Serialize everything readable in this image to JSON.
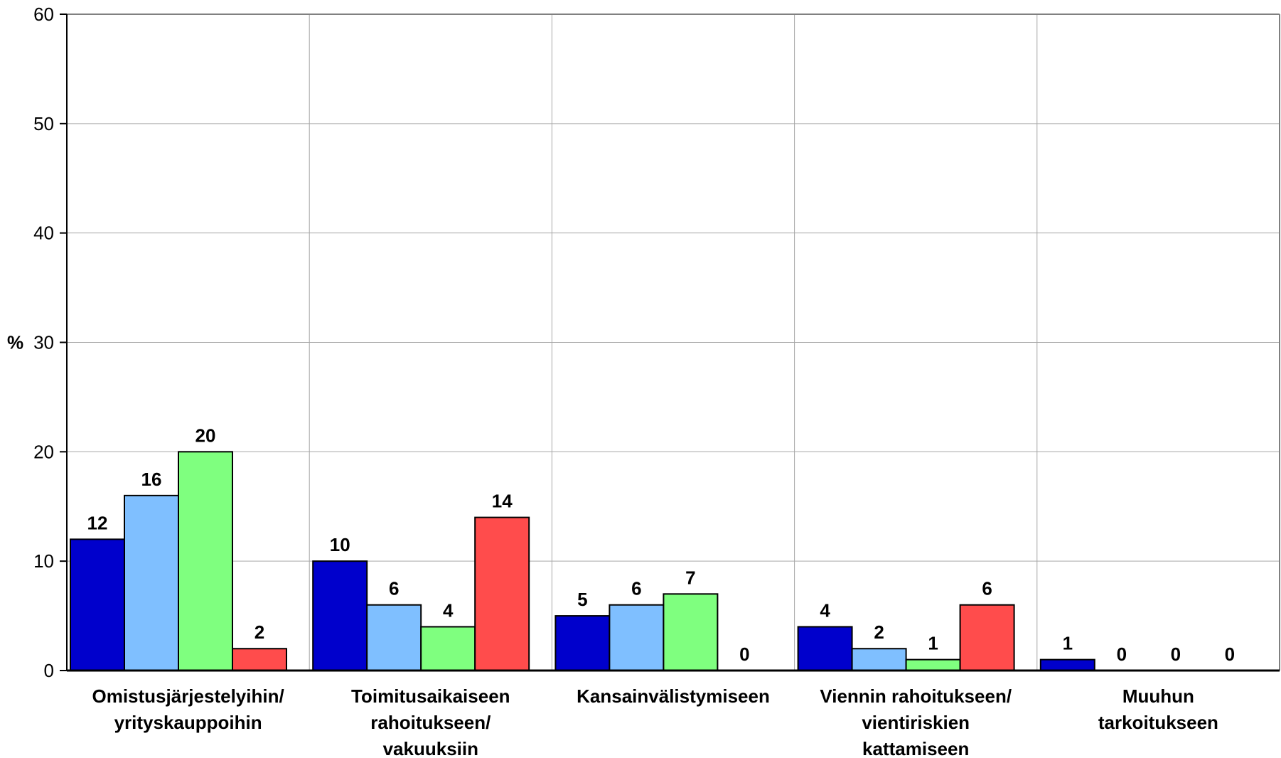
{
  "chart_data": {
    "type": "bar",
    "ylabel": "%",
    "ylim": [
      0,
      60
    ],
    "yticks": [
      0,
      10,
      20,
      30,
      40,
      50,
      60
    ],
    "grid": true,
    "categories": [
      [
        "Omistusjärjestelyihin/",
        "yrityskauppoihin"
      ],
      [
        "Toimitusaikaiseen",
        "rahoitukseen/",
        "vakuuksiin"
      ],
      [
        "Kansainvälistymiseen"
      ],
      [
        "Viennin rahoitukseen/",
        "vientiriskien",
        "kattamiseen"
      ],
      [
        "Muuhun",
        "tarkoitukseen"
      ]
    ],
    "series": [
      {
        "values": [
          12,
          10,
          5,
          4,
          1
        ],
        "color": "#0000cc"
      },
      {
        "values": [
          16,
          6,
          6,
          2,
          0
        ],
        "color": "#7fbfff"
      },
      {
        "values": [
          20,
          4,
          7,
          1,
          0
        ],
        "color": "#7fff7f"
      },
      {
        "values": [
          2,
          14,
          0,
          6,
          0
        ],
        "color": "#ff4c4c"
      }
    ]
  }
}
